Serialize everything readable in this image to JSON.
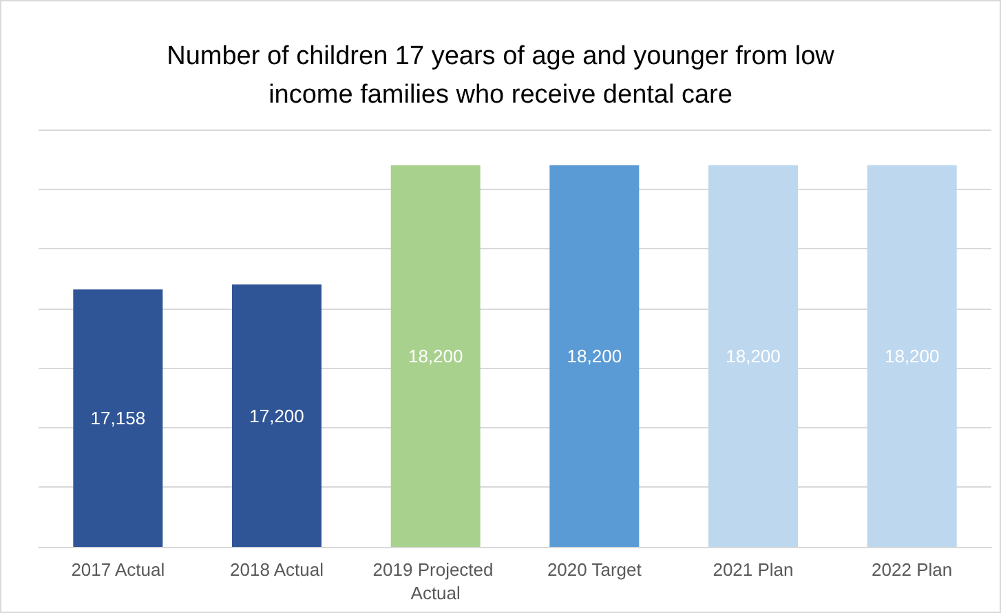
{
  "chart_data": {
    "type": "bar",
    "title": "Number of children 17 years of age and younger from low\nincome families who receive dental care",
    "categories": [
      "2017 Actual",
      "2018 Actual",
      "2019 Projected Actual",
      "2020 Target",
      "2021 Plan",
      "2022 Plan"
    ],
    "values": [
      17158,
      17200,
      18200,
      18200,
      18200,
      18200
    ],
    "value_labels": [
      "17,158",
      "17,200",
      "18,200",
      "18,200",
      "18,200",
      "18,200"
    ],
    "colors": [
      "#2f5597",
      "#2f5597",
      "#a9d18e",
      "#5b9bd5",
      "#bdd7ee",
      "#bdd7ee"
    ],
    "ylim": [
      15000,
      18500
    ],
    "yticks": [
      {
        "value": 15000,
        "label": null
      },
      {
        "value": 15500,
        "label": null
      },
      {
        "value": 16000,
        "label": null
      },
      {
        "value": 16500,
        "label": null
      },
      {
        "value": 17000,
        "label": null
      },
      {
        "value": 17500,
        "label": null
      },
      {
        "value": 18000,
        "label": null
      },
      {
        "value": 18500,
        "label": null
      }
    ],
    "tick_labels": "x",
    "grid": "y"
  }
}
